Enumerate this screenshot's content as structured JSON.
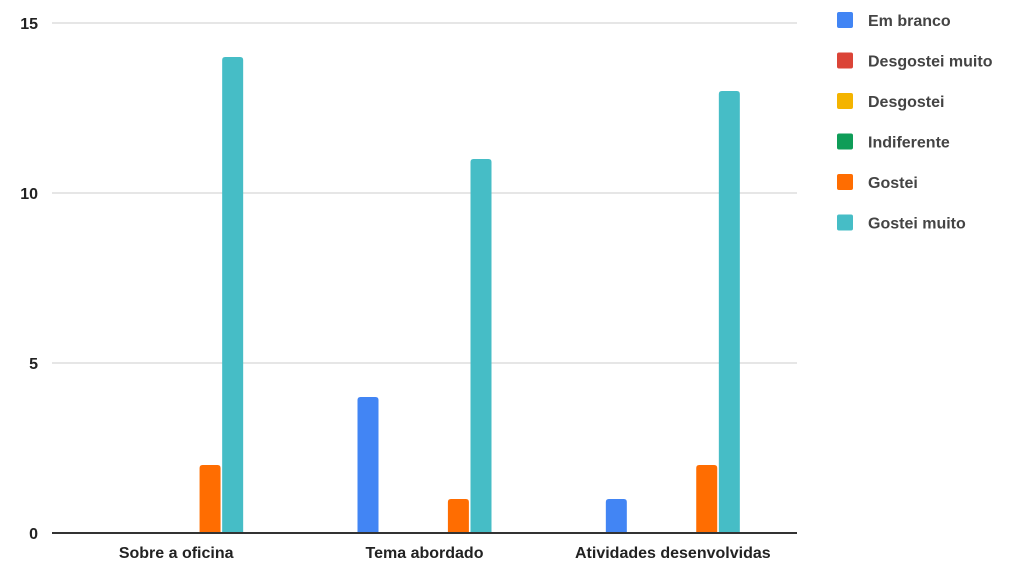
{
  "chart_data": {
    "type": "bar",
    "title": "",
    "xlabel": "",
    "ylabel": "",
    "categories": [
      "Sobre a oficina",
      "Tema abordado",
      "Atividades desenvolvidas"
    ],
    "series": [
      {
        "name": "Em branco",
        "color": "#4285F4",
        "values": [
          0,
          4,
          1
        ]
      },
      {
        "name": "Desgostei muito",
        "color": "#DB4437",
        "values": [
          0,
          0,
          0
        ]
      },
      {
        "name": "Desgostei",
        "color": "#F4B400",
        "values": [
          0,
          0,
          0
        ]
      },
      {
        "name": "Indiferente",
        "color": "#0F9D58",
        "values": [
          0,
          0,
          0
        ]
      },
      {
        "name": "Gostei",
        "color": "#FF6D01",
        "values": [
          2,
          1,
          2
        ]
      },
      {
        "name": "Gostei muito",
        "color": "#46BDC6",
        "values": [
          14,
          11,
          13
        ]
      }
    ],
    "ylim": [
      0,
      15
    ],
    "yticks": [
      "0",
      "5",
      "10",
      "15"
    ],
    "grid": true,
    "legend_position": "right"
  }
}
